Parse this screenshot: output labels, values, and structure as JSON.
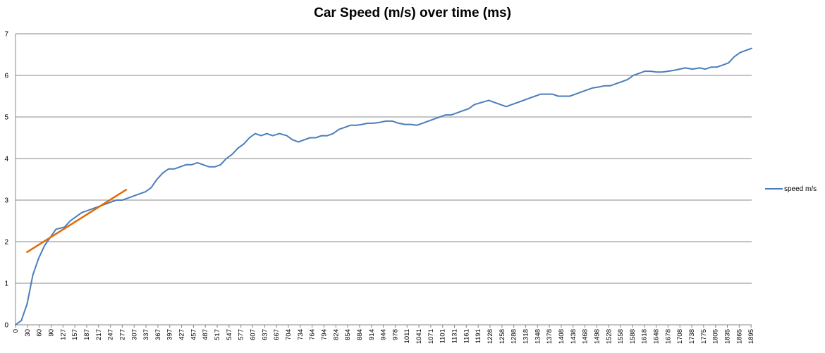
{
  "chart_data": {
    "type": "line",
    "title": "Car Speed (m/s) over time (ms)",
    "xlabel": "",
    "ylabel": "",
    "ylim": [
      0,
      7
    ],
    "yticks": [
      "0",
      "1",
      "2",
      "3",
      "4",
      "5",
      "6",
      "7"
    ],
    "grid": true,
    "legend_position": "right",
    "x_tick_labels": [
      "0",
      "30",
      "60",
      "90",
      "127",
      "157",
      "187",
      "217",
      "247",
      "277",
      "307",
      "337",
      "367",
      "397",
      "427",
      "457",
      "487",
      "517",
      "547",
      "577",
      "607",
      "637",
      "667",
      "704",
      "734",
      "764",
      "794",
      "824",
      "854",
      "884",
      "914",
      "944",
      "978",
      "1011",
      "1041",
      "1071",
      "1101",
      "1131",
      "1161",
      "1191",
      "1228",
      "1258",
      "1288",
      "1318",
      "1348",
      "1378",
      "1408",
      "1438",
      "1468",
      "1498",
      "1528",
      "1558",
      "1588",
      "1618",
      "1648",
      "1678",
      "1708",
      "1738",
      "1775",
      "1805",
      "1835",
      "1865",
      "1895"
    ],
    "series": [
      {
        "name": "speed m/s",
        "color": "#4a7ebb",
        "x": [
          0,
          15,
          30,
          45,
          60,
          75,
          90,
          105,
          127,
          142,
          157,
          172,
          187,
          202,
          217,
          232,
          247,
          262,
          277,
          292,
          307,
          322,
          337,
          352,
          367,
          382,
          397,
          412,
          427,
          442,
          457,
          472,
          487,
          502,
          517,
          532,
          547,
          562,
          577,
          592,
          607,
          622,
          637,
          652,
          667,
          685,
          704,
          719,
          734,
          749,
          764,
          779,
          794,
          809,
          824,
          839,
          854,
          869,
          884,
          899,
          914,
          929,
          944,
          961,
          978,
          994,
          1011,
          1026,
          1041,
          1056,
          1071,
          1086,
          1101,
          1116,
          1131,
          1146,
          1161,
          1176,
          1191,
          1209,
          1228,
          1243,
          1258,
          1273,
          1288,
          1303,
          1318,
          1333,
          1348,
          1363,
          1378,
          1393,
          1408,
          1423,
          1438,
          1453,
          1468,
          1483,
          1498,
          1513,
          1528,
          1543,
          1558,
          1573,
          1588,
          1603,
          1618,
          1633,
          1648,
          1663,
          1678,
          1693,
          1708,
          1723,
          1738,
          1756,
          1775,
          1790,
          1805,
          1820,
          1835,
          1850,
          1865,
          1880,
          1895,
          1910
        ],
        "values": [
          0,
          0.1,
          0.5,
          1.2,
          1.6,
          1.9,
          2.1,
          2.3,
          2.35,
          2.5,
          2.6,
          2.7,
          2.75,
          2.8,
          2.85,
          2.9,
          2.95,
          3.0,
          3.0,
          3.05,
          3.1,
          3.15,
          3.2,
          3.3,
          3.5,
          3.65,
          3.75,
          3.75,
          3.8,
          3.85,
          3.85,
          3.9,
          3.85,
          3.8,
          3.8,
          3.85,
          4.0,
          4.1,
          4.25,
          4.35,
          4.5,
          4.6,
          4.55,
          4.6,
          4.55,
          4.6,
          4.55,
          4.45,
          4.4,
          4.45,
          4.5,
          4.5,
          4.55,
          4.55,
          4.6,
          4.7,
          4.75,
          4.8,
          4.8,
          4.82,
          4.85,
          4.85,
          4.87,
          4.9,
          4.9,
          4.85,
          4.82,
          4.82,
          4.8,
          4.85,
          4.9,
          4.95,
          5.0,
          5.05,
          5.05,
          5.1,
          5.15,
          5.2,
          5.3,
          5.35,
          5.4,
          5.35,
          5.3,
          5.25,
          5.3,
          5.35,
          5.4,
          5.45,
          5.5,
          5.55,
          5.55,
          5.55,
          5.5,
          5.5,
          5.5,
          5.55,
          5.6,
          5.65,
          5.7,
          5.72,
          5.75,
          5.75,
          5.8,
          5.85,
          5.9,
          6.0,
          6.05,
          6.1,
          6.1,
          6.08,
          6.08,
          6.1,
          6.12,
          6.15,
          6.18,
          6.15,
          6.18,
          6.15,
          6.2,
          6.2,
          6.25,
          6.3,
          6.45,
          6.55,
          6.6,
          6.65
        ]
      },
      {
        "name": "",
        "color": "#e36c09",
        "x": [
          30,
          287
        ],
        "values": [
          1.75,
          3.25
        ]
      }
    ]
  }
}
